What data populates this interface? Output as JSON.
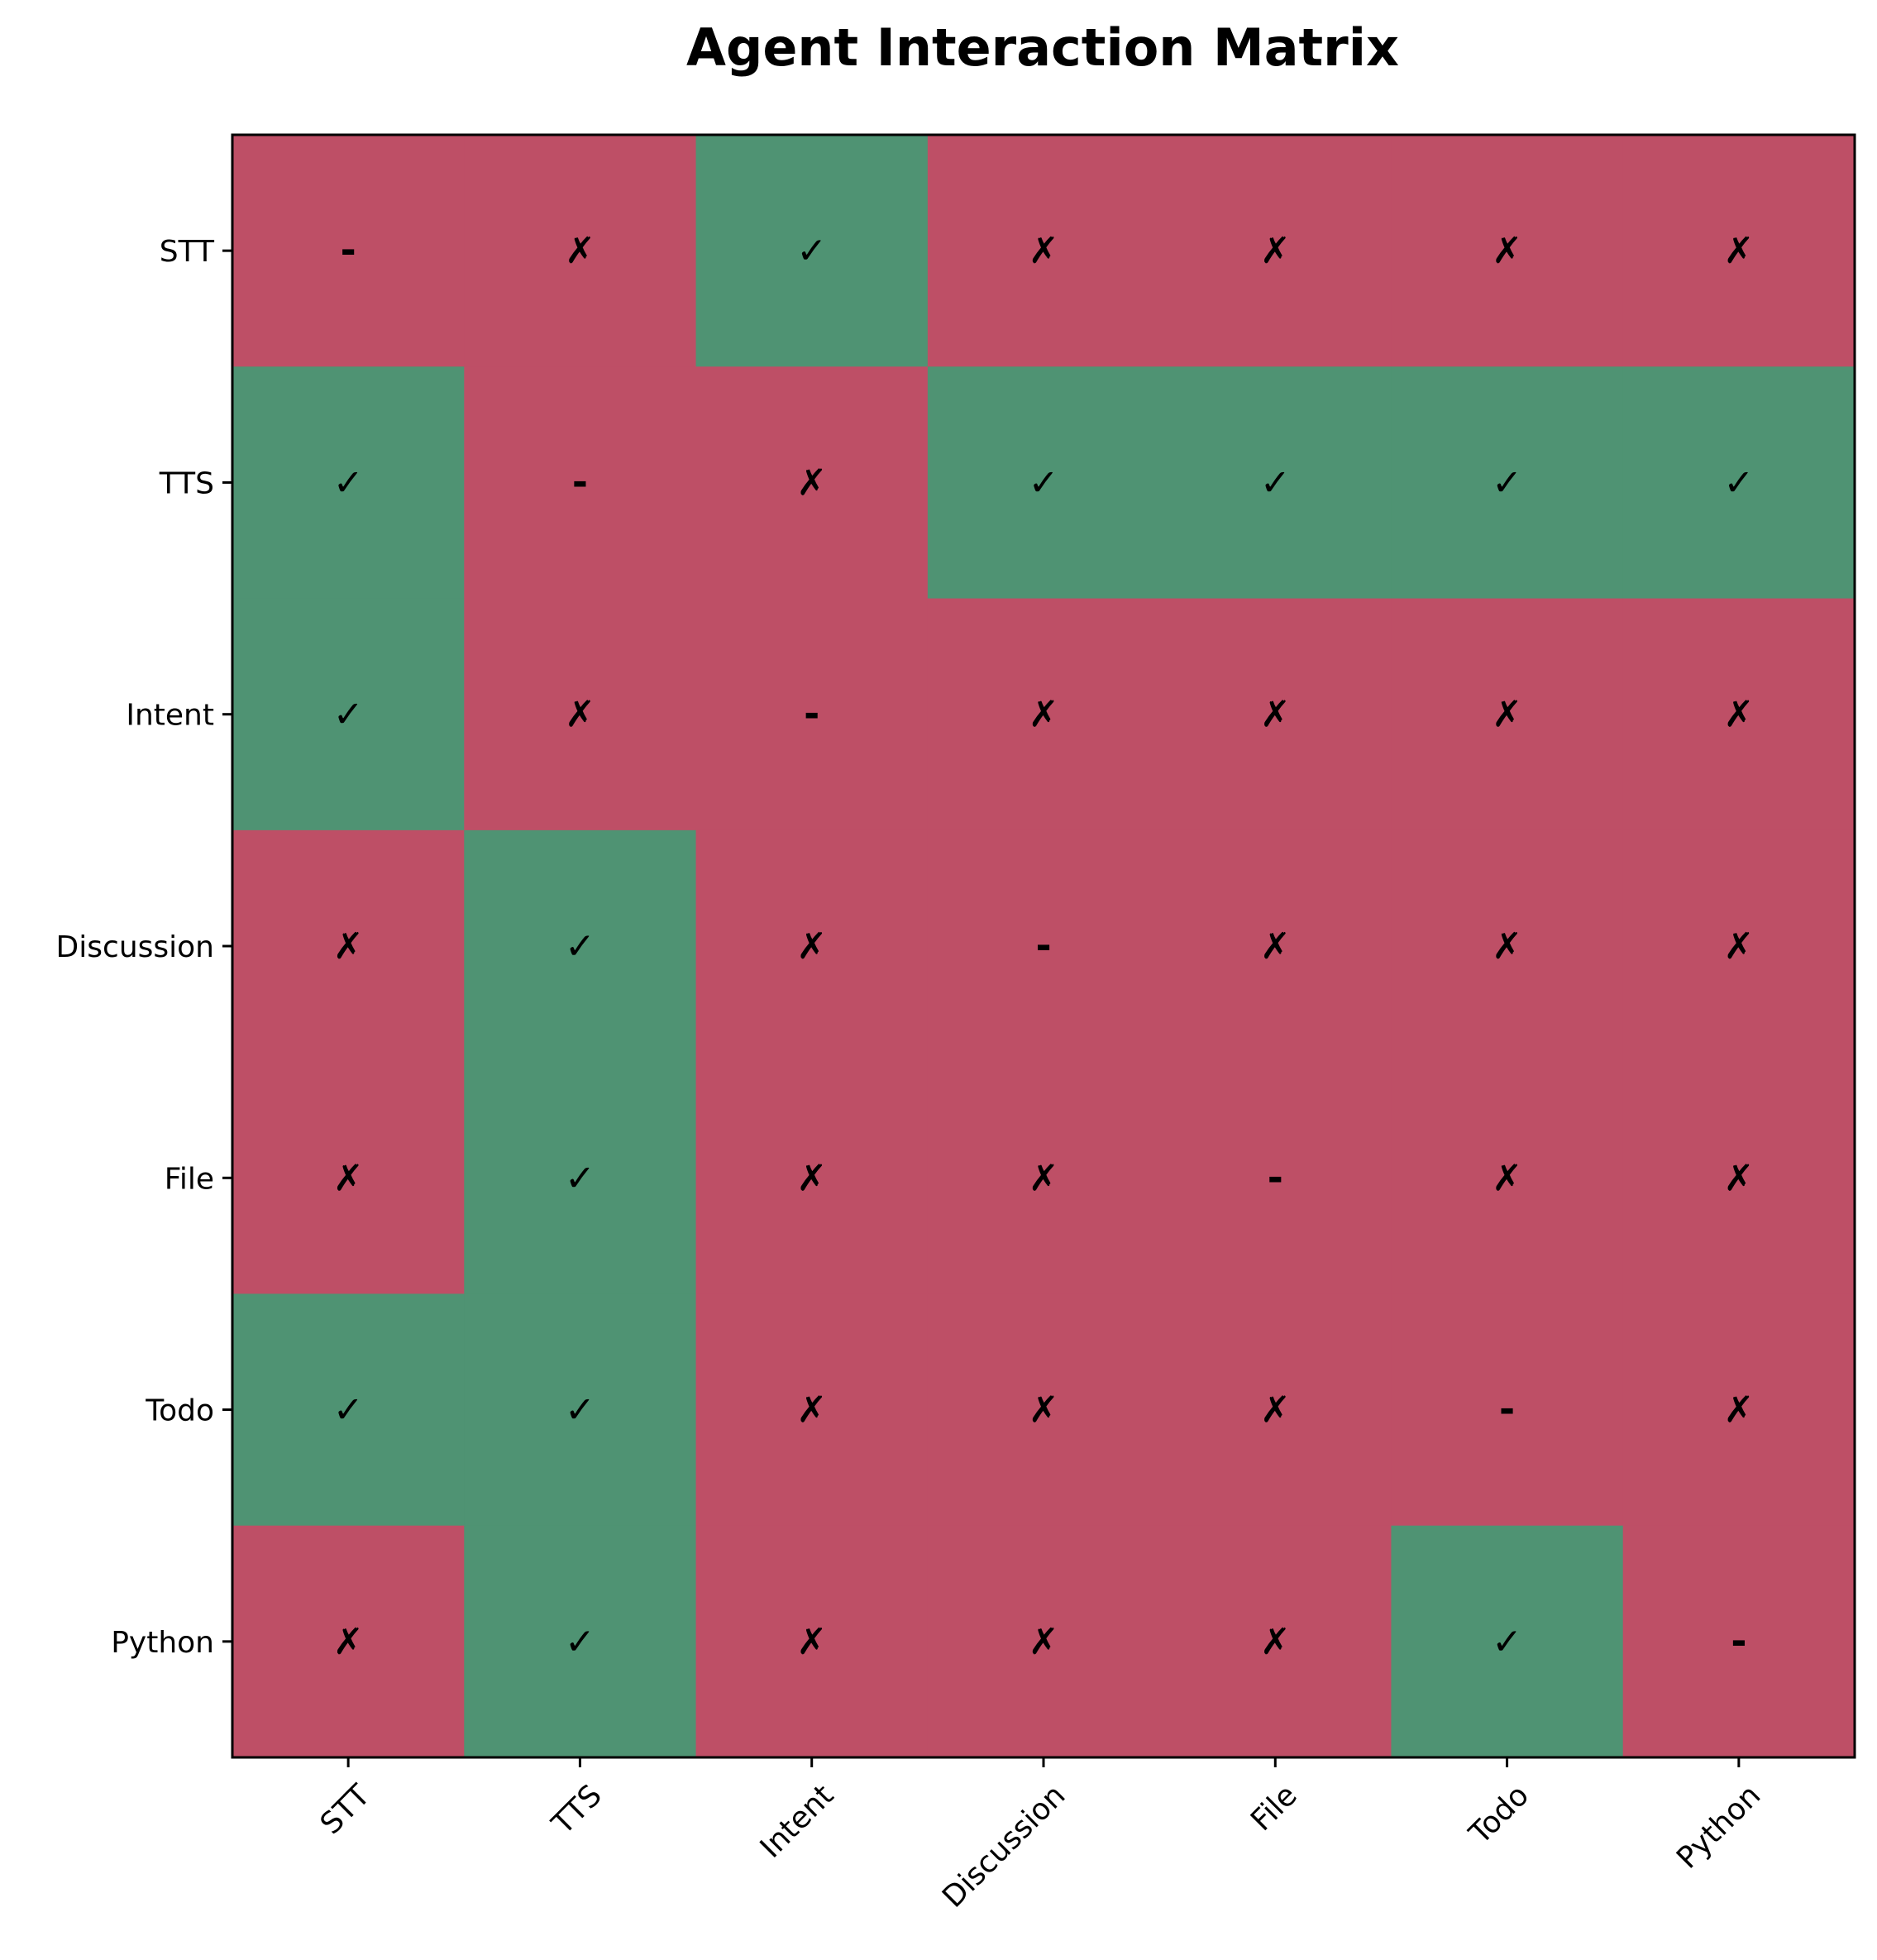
{
  "chart_data": {
    "type": "heatmap",
    "title": "Agent Interaction Matrix",
    "xlabel": "",
    "ylabel": "",
    "rows": [
      "STT",
      "TTS",
      "Intent",
      "Discussion",
      "File",
      "Todo",
      "Python"
    ],
    "columns": [
      "STT",
      "TTS",
      "Intent",
      "Discussion",
      "File",
      "Todo",
      "Python"
    ],
    "symbols": {
      "yes": "✓",
      "no": "✗",
      "self": "-"
    },
    "colors": {
      "yes": "#4f9373",
      "no": "#be4f66"
    },
    "matrix": [
      [
        "self",
        "no",
        "yes",
        "no",
        "no",
        "no",
        "no"
      ],
      [
        "yes",
        "self",
        "no",
        "yes",
        "yes",
        "yes",
        "yes"
      ],
      [
        "yes",
        "no",
        "self",
        "no",
        "no",
        "no",
        "no"
      ],
      [
        "no",
        "yes",
        "no",
        "self",
        "no",
        "no",
        "no"
      ],
      [
        "no",
        "yes",
        "no",
        "no",
        "self",
        "no",
        "no"
      ],
      [
        "yes",
        "yes",
        "no",
        "no",
        "no",
        "self",
        "no"
      ],
      [
        "no",
        "yes",
        "no",
        "no",
        "no",
        "yes",
        "self"
      ]
    ]
  }
}
